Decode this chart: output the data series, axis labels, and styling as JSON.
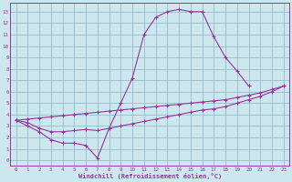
{
  "bg_color": "#cce8ee",
  "line_color": "#993399",
  "grid_color": "#99bbcc",
  "xlabel": "Windchill (Refroidissement éolien,°C)",
  "xlim": [
    -0.5,
    23.5
  ],
  "ylim": [
    -0.5,
    13.8
  ],
  "curve1_x": [
    0,
    1,
    2,
    3,
    4,
    5,
    6,
    7,
    8,
    9,
    10,
    11,
    12,
    13,
    14,
    15,
    16,
    17,
    18,
    19,
    20
  ],
  "curve1_y": [
    3.5,
    3.0,
    2.5,
    1.8,
    1.5,
    1.5,
    1.3,
    0.2,
    2.8,
    5.0,
    7.2,
    11.0,
    12.5,
    13.0,
    13.2,
    13.0,
    13.0,
    10.8,
    9.0,
    7.8,
    6.5
  ],
  "curve2_x": [
    0,
    1,
    2,
    3,
    4,
    5,
    6,
    7,
    8,
    9,
    10,
    11,
    12,
    13,
    14,
    15,
    16,
    17,
    18,
    19,
    20,
    21,
    22,
    23
  ],
  "curve2_y": [
    3.5,
    3.6,
    3.7,
    3.8,
    3.9,
    4.0,
    4.1,
    4.2,
    4.3,
    4.4,
    4.5,
    4.6,
    4.7,
    4.8,
    4.9,
    5.0,
    5.1,
    5.2,
    5.3,
    5.5,
    5.7,
    5.9,
    6.2,
    6.5
  ],
  "curve3_x": [
    0,
    1,
    2,
    3,
    4,
    5,
    6,
    7,
    8,
    9,
    10,
    11,
    12,
    13,
    14,
    15,
    16,
    17,
    18,
    19,
    20,
    21,
    22,
    23
  ],
  "curve3_y": [
    3.5,
    3.3,
    2.8,
    2.5,
    2.5,
    2.6,
    2.7,
    2.6,
    2.8,
    3.0,
    3.2,
    3.4,
    3.6,
    3.8,
    4.0,
    4.2,
    4.4,
    4.5,
    4.7,
    5.0,
    5.3,
    5.6,
    6.0,
    6.5
  ]
}
